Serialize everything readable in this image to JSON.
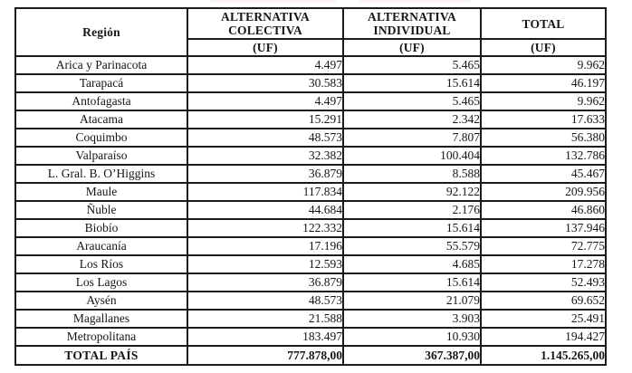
{
  "colors": {
    "border": "#1b1b1b",
    "text": "#161616",
    "background": "#ffffff"
  },
  "table": {
    "header": {
      "region": "Región",
      "col1": "ALTERNATIVA COLECTIVA",
      "col2": "ALTERNATIVA INDIVIDUAL",
      "col3": "TOTAL",
      "uf": "(UF)"
    },
    "rows": [
      {
        "region": "Arica y Parinacota",
        "colectiva": "4.497",
        "individual": "5.465",
        "total": "9.962"
      },
      {
        "region": "Tarapacá",
        "colectiva": "30.583",
        "individual": "15.614",
        "total": "46.197"
      },
      {
        "region": "Antofagasta",
        "colectiva": "4.497",
        "individual": "5.465",
        "total": "9.962"
      },
      {
        "region": "Atacama",
        "colectiva": "15.291",
        "individual": "2.342",
        "total": "17.633"
      },
      {
        "region": "Coquimbo",
        "colectiva": "48.573",
        "individual": "7.807",
        "total": "56.380"
      },
      {
        "region": "Valparaíso",
        "colectiva": "32.382",
        "individual": "100.404",
        "total": "132.786"
      },
      {
        "region": "L. Gral. B. O’Higgins",
        "colectiva": "36.879",
        "individual": "8.588",
        "total": "45.467"
      },
      {
        "region": "Maule",
        "colectiva": "117.834",
        "individual": "92.122",
        "total": "209.956"
      },
      {
        "region": "Ñuble",
        "colectiva": "44.684",
        "individual": "2.176",
        "total": "46.860"
      },
      {
        "region": "Biobío",
        "colectiva": "122.332",
        "individual": "15.614",
        "total": "137.946"
      },
      {
        "region": "Araucanía",
        "colectiva": "17.196",
        "individual": "55.579",
        "total": "72.775"
      },
      {
        "region": "Los Ríos",
        "colectiva": "12.593",
        "individual": "4.685",
        "total": "17.278"
      },
      {
        "region": "Los Lagos",
        "colectiva": "36.879",
        "individual": "15.614",
        "total": "52.493"
      },
      {
        "region": "Aysén",
        "colectiva": "48.573",
        "individual": "21.079",
        "total": "69.652"
      },
      {
        "region": "Magallanes",
        "colectiva": "21.588",
        "individual": "3.903",
        "total": "25.491"
      },
      {
        "region": "Metropolitana",
        "colectiva": "183.497",
        "individual": "10.930",
        "total": "194.427"
      }
    ],
    "total_row": {
      "label": "TOTAL PAÍS",
      "colectiva": "777.878,00",
      "individual": "367.387,00",
      "total": "1.145.265,00"
    }
  }
}
